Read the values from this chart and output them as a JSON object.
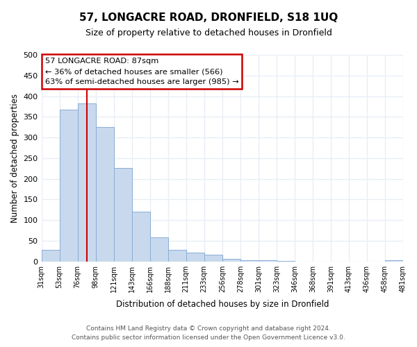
{
  "title": "57, LONGACRE ROAD, DRONFIELD, S18 1UQ",
  "subtitle": "Size of property relative to detached houses in Dronfield",
  "xlabel": "Distribution of detached houses by size in Dronfield",
  "ylabel": "Number of detached properties",
  "bar_color": "#c8d9ee",
  "bar_edgecolor": "#8aadd4",
  "bin_edges": [
    31,
    53,
    76,
    98,
    121,
    143,
    166,
    188,
    211,
    233,
    256,
    278,
    301,
    323,
    346,
    368,
    391,
    413,
    436,
    458,
    481
  ],
  "values": [
    28,
    367,
    383,
    325,
    226,
    120,
    58,
    28,
    22,
    17,
    6,
    2,
    2,
    1,
    0,
    0,
    0,
    0,
    0,
    2
  ],
  "tick_labels": [
    "31sqm",
    "53sqm",
    "76sqm",
    "98sqm",
    "121sqm",
    "143sqm",
    "166sqm",
    "188sqm",
    "211sqm",
    "233sqm",
    "256sqm",
    "278sqm",
    "301sqm",
    "323sqm",
    "346sqm",
    "368sqm",
    "391sqm",
    "413sqm",
    "436sqm",
    "458sqm",
    "481sqm"
  ],
  "property_line_x": 87,
  "annotation_title": "57 LONGACRE ROAD: 87sqm",
  "annotation_line1": "← 36% of detached houses are smaller (566)",
  "annotation_line2": "63% of semi-detached houses are larger (985) →",
  "annotation_box_facecolor": "#ffffff",
  "annotation_box_edgecolor": "#cc0000",
  "vline_color": "#cc0000",
  "ylim": [
    0,
    500
  ],
  "yticks": [
    0,
    50,
    100,
    150,
    200,
    250,
    300,
    350,
    400,
    450,
    500
  ],
  "footer1": "Contains HM Land Registry data © Crown copyright and database right 2024.",
  "footer2": "Contains public sector information licensed under the Open Government Licence v3.0.",
  "bg_color": "#ffffff",
  "plot_bg_color": "#ffffff",
  "grid_color": "#e8eef5"
}
